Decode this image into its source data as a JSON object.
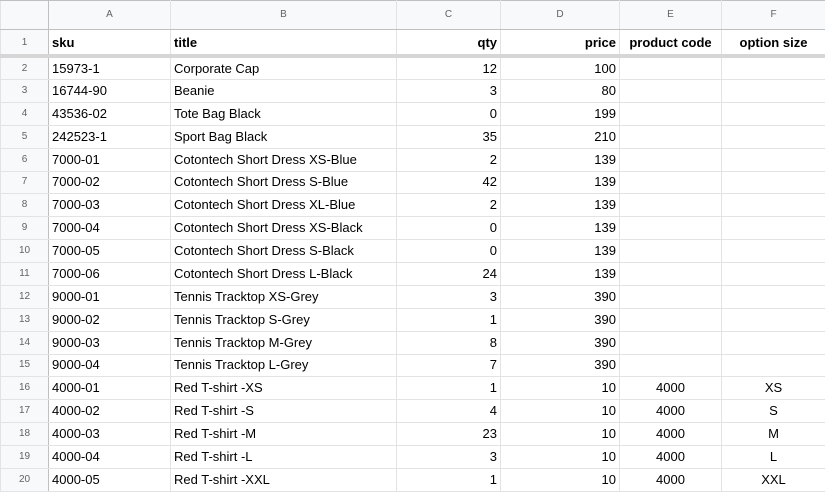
{
  "columns": [
    "A",
    "B",
    "C",
    "D",
    "E",
    "F"
  ],
  "headers": {
    "row_number": "1",
    "sku": "sku",
    "title": "title",
    "qty": "qty",
    "price": "price",
    "product_code": "product code",
    "option_size": "option size"
  },
  "rows": [
    {
      "n": "2",
      "sku": "15973-1",
      "title": "Corporate Cap",
      "qty": "12",
      "price": "100",
      "code": "",
      "size": ""
    },
    {
      "n": "3",
      "sku": "16744-90",
      "title": "Beanie",
      "qty": "3",
      "price": "80",
      "code": "",
      "size": ""
    },
    {
      "n": "4",
      "sku": "43536-02",
      "title": "Tote Bag Black",
      "qty": "0",
      "price": "199",
      "code": "",
      "size": ""
    },
    {
      "n": "5",
      "sku": "242523-1",
      "title": "Sport Bag Black",
      "qty": "35",
      "price": "210",
      "code": "",
      "size": ""
    },
    {
      "n": "6",
      "sku": "7000-01",
      "title": "Cotontech Short Dress XS-Blue",
      "qty": "2",
      "price": "139",
      "code": "",
      "size": ""
    },
    {
      "n": "7",
      "sku": "7000-02",
      "title": "Cotontech Short Dress S-Blue",
      "qty": "42",
      "price": "139",
      "code": "",
      "size": ""
    },
    {
      "n": "8",
      "sku": "7000-03",
      "title": "Cotontech Short Dress XL-Blue",
      "qty": "2",
      "price": "139",
      "code": "",
      "size": ""
    },
    {
      "n": "9",
      "sku": "7000-04",
      "title": "Cotontech Short Dress XS-Black",
      "qty": "0",
      "price": "139",
      "code": "",
      "size": ""
    },
    {
      "n": "10",
      "sku": "7000-05",
      "title": "Cotontech Short Dress S-Black",
      "qty": "0",
      "price": "139",
      "code": "",
      "size": ""
    },
    {
      "n": "11",
      "sku": "7000-06",
      "title": "Cotontech Short Dress L-Black",
      "qty": "24",
      "price": "139",
      "code": "",
      "size": ""
    },
    {
      "n": "12",
      "sku": "9000-01",
      "title": "Tennis Tracktop XS-Grey",
      "qty": "3",
      "price": "390",
      "code": "",
      "size": ""
    },
    {
      "n": "13",
      "sku": "9000-02",
      "title": "Tennis Tracktop S-Grey",
      "qty": "1",
      "price": "390",
      "code": "",
      "size": ""
    },
    {
      "n": "14",
      "sku": "9000-03",
      "title": "Tennis Tracktop M-Grey",
      "qty": "8",
      "price": "390",
      "code": "",
      "size": ""
    },
    {
      "n": "15",
      "sku": "9000-04",
      "title": "Tennis Tracktop L-Grey",
      "qty": "7",
      "price": "390",
      "code": "",
      "size": ""
    },
    {
      "n": "16",
      "sku": "4000-01",
      "title": "Red T-shirt -XS",
      "qty": "1",
      "price": "10",
      "code": "4000",
      "size": "XS"
    },
    {
      "n": "17",
      "sku": "4000-02",
      "title": "Red T-shirt -S",
      "qty": "4",
      "price": "10",
      "code": "4000",
      "size": "S"
    },
    {
      "n": "18",
      "sku": "4000-03",
      "title": "Red T-shirt -M",
      "qty": "23",
      "price": "10",
      "code": "4000",
      "size": "M"
    },
    {
      "n": "19",
      "sku": "4000-04",
      "title": "Red T-shirt -L",
      "qty": "3",
      "price": "10",
      "code": "4000",
      "size": "L"
    },
    {
      "n": "20",
      "sku": "4000-05",
      "title": "Red T-shirt -XXL",
      "qty": "1",
      "price": "10",
      "code": "4000",
      "size": "XXL"
    }
  ]
}
